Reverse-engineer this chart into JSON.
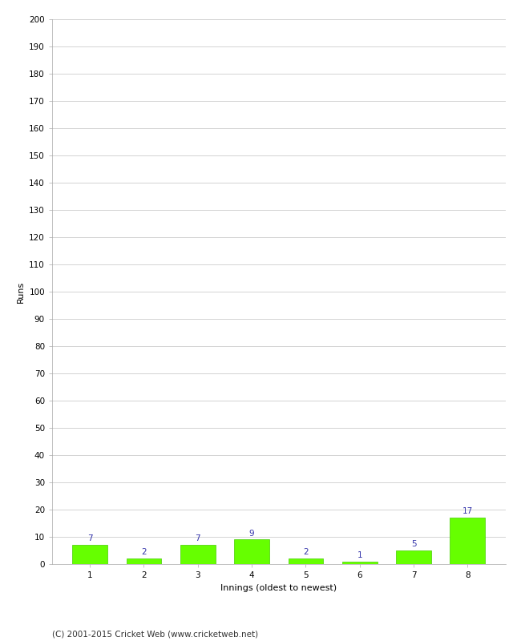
{
  "innings": [
    1,
    2,
    3,
    4,
    5,
    6,
    7,
    8
  ],
  "runs": [
    7,
    2,
    7,
    9,
    2,
    1,
    5,
    17
  ],
  "bar_color": "#66ff00",
  "bar_edge_color": "#44cc00",
  "label_color": "#3333aa",
  "xlabel": "Innings (oldest to newest)",
  "ylabel": "Runs",
  "ylim": [
    0,
    200
  ],
  "yticks": [
    0,
    10,
    20,
    30,
    40,
    50,
    60,
    70,
    80,
    90,
    100,
    110,
    120,
    130,
    140,
    150,
    160,
    170,
    180,
    190,
    200
  ],
  "title": "",
  "footer": "(C) 2001-2015 Cricket Web (www.cricketweb.net)",
  "background_color": "#ffffff",
  "grid_color": "#cccccc",
  "label_fontsize": 7.5,
  "axis_fontsize": 7.5,
  "footer_fontsize": 7.5
}
